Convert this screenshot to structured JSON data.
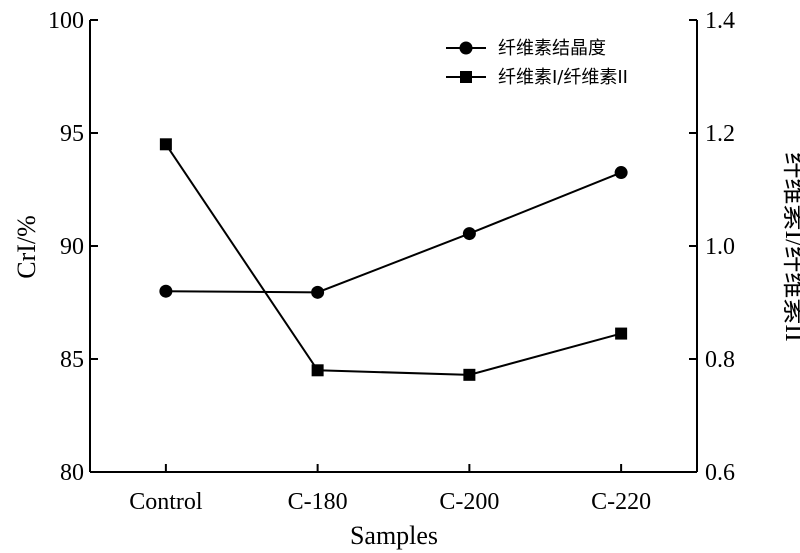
{
  "chart_data": {
    "type": "line",
    "categories": [
      "Control",
      "C-180",
      "C-200",
      "C-220"
    ],
    "xlabel": "Samples",
    "ylabel_left": "CrI/%",
    "ylabel_right": "纤维素I/纤维素II",
    "ylim_left": [
      80,
      100
    ],
    "ylim_right": [
      0.6,
      1.4
    ],
    "yticks_left": [
      "80",
      "85",
      "90",
      "95",
      "100"
    ],
    "yticks_right": [
      "0.6",
      "0.8",
      "1.0",
      "1.2",
      "1.4"
    ],
    "legend_position": "top-right",
    "grid": false,
    "series": [
      {
        "name": "纤维素结晶度",
        "axis": "left",
        "marker": "circle",
        "values": [
          88.0,
          87.95,
          90.55,
          93.25
        ]
      },
      {
        "name": "纤维素I/纤维素II",
        "axis": "right",
        "marker": "square",
        "values": [
          1.18,
          0.78,
          0.772,
          0.845
        ]
      }
    ]
  }
}
